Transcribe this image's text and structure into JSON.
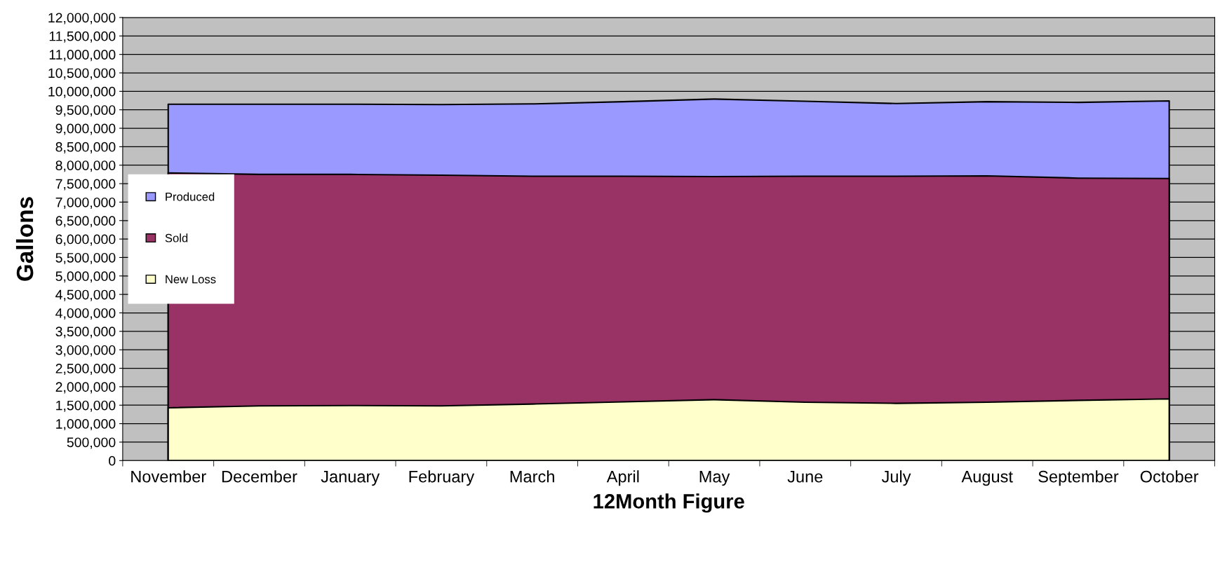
{
  "chart_data": {
    "type": "area",
    "xlabel": "12Month Figure",
    "ylabel": "Gallons",
    "categories": [
      "November",
      "December",
      "January",
      "February",
      "March",
      "April",
      "May",
      "June",
      "July",
      "August",
      "September",
      "October"
    ],
    "series": [
      {
        "name": "Produced",
        "color": "#9999ff",
        "values": [
          9650000,
          9650000,
          9650000,
          9640000,
          9660000,
          9720000,
          9790000,
          9730000,
          9670000,
          9720000,
          9700000,
          9740000
        ]
      },
      {
        "name": "Sold",
        "color": "#993366",
        "values": [
          7790000,
          7750000,
          7750000,
          7730000,
          7700000,
          7700000,
          7690000,
          7700000,
          7700000,
          7710000,
          7650000,
          7640000
        ]
      },
      {
        "name": "New Loss",
        "color": "#ffffcc",
        "values": [
          1430000,
          1480000,
          1490000,
          1480000,
          1530000,
          1590000,
          1650000,
          1580000,
          1550000,
          1580000,
          1630000,
          1670000
        ]
      }
    ],
    "ylim": [
      0,
      12000000
    ],
    "yticks": [
      {
        "value": 0,
        "label": "0"
      },
      {
        "value": 500000,
        "label": "500,000"
      },
      {
        "value": 1000000,
        "label": "1,000,000"
      },
      {
        "value": 1500000,
        "label": "1,500,000"
      },
      {
        "value": 2000000,
        "label": "2,000,000"
      },
      {
        "value": 2500000,
        "label": "2,500,000"
      },
      {
        "value": 3000000,
        "label": "3,000,000"
      },
      {
        "value": 3500000,
        "label": "3,500,000"
      },
      {
        "value": 4000000,
        "label": "4,000,000"
      },
      {
        "value": 4500000,
        "label": "4,500,000"
      },
      {
        "value": 5000000,
        "label": "5,000,000"
      },
      {
        "value": 5500000,
        "label": "5,500,000"
      },
      {
        "value": 6000000,
        "label": "6,000,000"
      },
      {
        "value": 6500000,
        "label": "6,500,000"
      },
      {
        "value": 7000000,
        "label": "7,000,000"
      },
      {
        "value": 7500000,
        "label": "7,500,000"
      },
      {
        "value": 8000000,
        "label": "8,000,000"
      },
      {
        "value": 8500000,
        "label": "8,500,000"
      },
      {
        "value": 9000000,
        "label": "9,000,000"
      },
      {
        "value": 9500000,
        "label": "9,500,000"
      },
      {
        "value": 10000000,
        "label": "10,000,000"
      },
      {
        "value": 10500000,
        "label": "10,500,000"
      },
      {
        "value": 11000000,
        "label": "11,000,000"
      },
      {
        "value": 11500000,
        "label": "11,500,000"
      },
      {
        "value": 12000000,
        "label": "12,000,000"
      }
    ],
    "grid": "y",
    "legend": "left"
  }
}
